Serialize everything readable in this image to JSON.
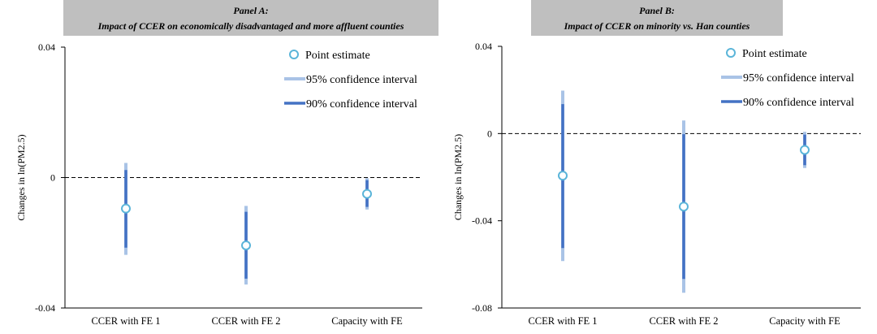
{
  "colors": {
    "header_bg": "#bfbfbf",
    "axis": "#000000",
    "ci95": "#a9c3e6",
    "ci90": "#4472c4",
    "point_fill": "#ffffff",
    "point_stroke": "#5bb5d9",
    "zero_line": "#000000"
  },
  "chart_data": [
    {
      "type": "scatter",
      "panel_title_line1": "Panel A:",
      "panel_title_line2": "Impact of CCER on economically disadvantaged and more affluent counties",
      "ylabel": "Changes in ln(PM2.5)",
      "ylim": [
        -0.04,
        0.04
      ],
      "yticks": [
        0.04,
        0,
        -0.04
      ],
      "ytick_labels": [
        "0.04",
        "0",
        "-0.04"
      ],
      "reference_line": 0,
      "categories": [
        "CCER with FE 1",
        "CCER with FE 2",
        "Capacity with FE"
      ],
      "point_estimate": [
        -0.0095,
        -0.0208,
        -0.005
      ],
      "ci95": [
        [
          -0.0237,
          0.0045
        ],
        [
          -0.0328,
          -0.0087
        ],
        [
          -0.0098,
          -0.0002
        ]
      ],
      "ci90": [
        [
          -0.0215,
          0.0023
        ],
        [
          -0.031,
          -0.0105
        ],
        [
          -0.009,
          -0.0008
        ]
      ],
      "legend": [
        "Point estimate",
        "95% confidence interval",
        "90% confidence interval"
      ],
      "legend_position": "top-right"
    },
    {
      "type": "scatter",
      "panel_title_line1": "Panel B:",
      "panel_title_line2": "Impact of CCER on minority vs. Han counties",
      "ylabel": "Changes in ln(PM2.5)",
      "ylim": [
        -0.08,
        0.04
      ],
      "yticks": [
        0.04,
        0,
        -0.04,
        -0.08
      ],
      "ytick_labels": [
        "0.04",
        "0",
        "-0.04",
        "-0.08"
      ],
      "reference_line": 0,
      "categories": [
        "CCER with FE 1",
        "CCER with FE 2",
        "Capacity with FE"
      ],
      "point_estimate": [
        -0.0193,
        -0.0335,
        -0.0075
      ],
      "ci95": [
        [
          -0.0585,
          0.0197
        ],
        [
          -0.073,
          0.006
        ],
        [
          -0.0158,
          0.0008
        ]
      ],
      "ci90": [
        [
          -0.0525,
          0.0135
        ],
        [
          -0.0667,
          -0.0003
        ],
        [
          -0.0145,
          -0.0005
        ]
      ],
      "legend": [
        "Point estimate",
        "95% confidence interval",
        "90% confidence interval"
      ],
      "legend_position": "top-right"
    }
  ]
}
